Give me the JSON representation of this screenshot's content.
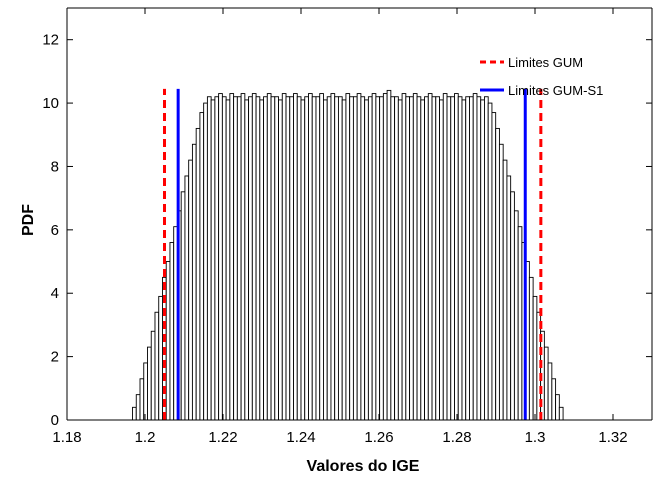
{
  "chart_data": {
    "type": "bar",
    "title": "",
    "xlabel": "Valores do IGE",
    "ylabel": "PDF",
    "xlim": [
      1.18,
      1.33
    ],
    "ylim": [
      0,
      13
    ],
    "xticks": [
      "1.18",
      "1.2",
      "1.22",
      "1.24",
      "1.26",
      "1.28",
      "1.3",
      "1.32"
    ],
    "yticks": [
      "0",
      "2",
      "4",
      "6",
      "8",
      "10",
      "12"
    ],
    "grid": false,
    "legend_position": "top-right",
    "histogram": {
      "bin_start": 1.1968,
      "bin_width": 0.00096,
      "values": [
        0.4,
        0.8,
        1.3,
        1.8,
        2.3,
        2.8,
        3.4,
        3.9,
        4.5,
        5.0,
        5.6,
        6.1,
        6.6,
        7.2,
        7.7,
        8.2,
        8.7,
        9.2,
        9.7,
        10.0,
        10.2,
        10.1,
        10.2,
        10.3,
        10.2,
        10.1,
        10.3,
        10.2,
        10.2,
        10.3,
        10.1,
        10.2,
        10.3,
        10.2,
        10.1,
        10.2,
        10.3,
        10.2,
        10.2,
        10.1,
        10.3,
        10.2,
        10.2,
        10.3,
        10.2,
        10.1,
        10.2,
        10.3,
        10.2,
        10.2,
        10.3,
        10.1,
        10.2,
        10.3,
        10.2,
        10.2,
        10.1,
        10.3,
        10.2,
        10.2,
        10.3,
        10.2,
        10.1,
        10.2,
        10.3,
        10.2,
        10.2,
        10.3,
        10.4,
        10.2,
        10.2,
        10.1,
        10.3,
        10.2,
        10.2,
        10.3,
        10.2,
        10.1,
        10.2,
        10.3,
        10.2,
        10.2,
        10.1,
        10.3,
        10.2,
        10.2,
        10.3,
        10.2,
        10.1,
        10.2,
        10.2,
        10.3,
        10.2,
        10.1,
        10.2,
        10.0,
        9.7,
        9.2,
        8.7,
        8.2,
        7.7,
        7.2,
        6.6,
        6.1,
        5.6,
        5.0,
        4.5,
        3.9,
        3.4,
        2.8,
        2.3,
        1.8,
        1.3,
        0.8,
        0.4
      ]
    },
    "series": [
      {
        "name": "Limites GUM",
        "style": "dashed",
        "color": "#ff0000",
        "x": [
          1.205,
          1.3015
        ],
        "y_top": 10.45
      },
      {
        "name": "Limites GUM-S1",
        "style": "solid",
        "color": "#0000ff",
        "x": [
          1.2085,
          1.2975
        ],
        "y_top": 10.45
      }
    ],
    "colors": {
      "bar_fill": "#ffffff",
      "bar_edge": "#000000"
    }
  }
}
